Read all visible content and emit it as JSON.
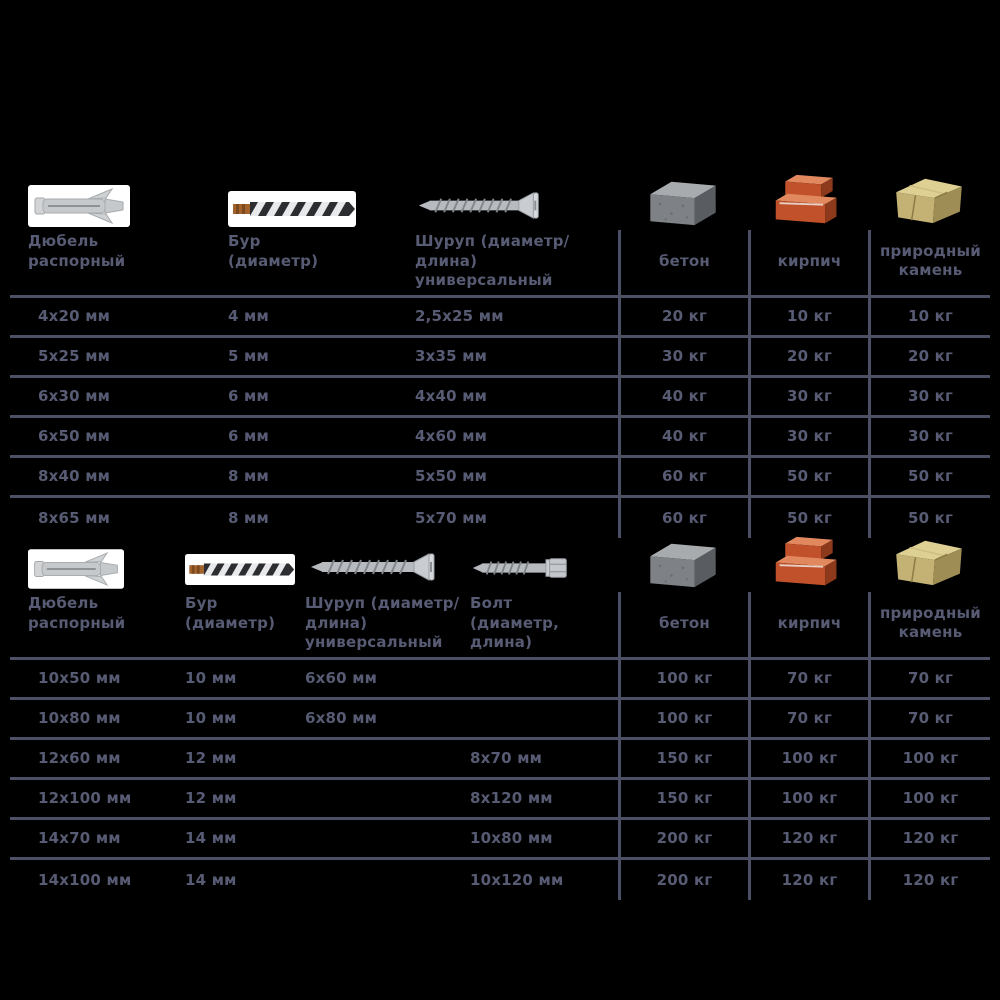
{
  "colors": {
    "background": "#000000",
    "text": "#575b73",
    "line": "#4c5066",
    "image_panel": "#ffffff",
    "brick": "#c0512b",
    "concrete": "#7e8286",
    "stone": "#c3b273"
  },
  "chart_data": [
    {
      "type": "table",
      "columns": [
        "Дюбель\nраспорный",
        "Бур\n(диаметр)",
        "Шуруп (диаметр/длина)\nуниверсальный",
        "бетон",
        "кирпич",
        "природный камень"
      ],
      "column_icons": [
        "dowel",
        "drill-bit",
        "universal-screw",
        "concrete-block",
        "brick",
        "natural-stone"
      ],
      "load_columns_start": 3,
      "rows": [
        [
          "4х20 мм",
          "4 мм",
          "2,5х25 мм",
          "20 кг",
          "10 кг",
          "10 кг"
        ],
        [
          "5х25 мм",
          "5 мм",
          "3х35 мм",
          "30 кг",
          "20 кг",
          "20 кг"
        ],
        [
          "6х30 мм",
          "6 мм",
          "4х40 мм",
          "40 кг",
          "30 кг",
          "30 кг"
        ],
        [
          "6х50 мм",
          "6 мм",
          "4х60 мм",
          "40 кг",
          "30 кг",
          "30 кг"
        ],
        [
          "8х40 мм",
          "8 мм",
          "5х50 мм",
          "60 кг",
          "50 кг",
          "50 кг"
        ],
        [
          "8х65 мм",
          "8 мм",
          "5х70 мм",
          "60 кг",
          "50 кг",
          "50 кг"
        ]
      ]
    },
    {
      "type": "table",
      "columns": [
        "Дюбель\nраспорный",
        "Бур\n(диаметр)",
        "Шуруп (диаметр/длина)\nуниверсальный",
        "Болт\n(диаметр, длина)",
        "бетон",
        "кирпич",
        "природный камень"
      ],
      "column_icons": [
        "dowel",
        "drill-bit",
        "universal-screw",
        "lag-bolt",
        "concrete-block",
        "brick",
        "natural-stone"
      ],
      "load_columns_start": 4,
      "rows": [
        [
          "10х50 мм",
          "10 мм",
          "6х60 мм",
          "",
          "100 кг",
          "70 кг",
          "70 кг"
        ],
        [
          "10х80 мм",
          "10 мм",
          "6х80 мм",
          "",
          "100 кг",
          "70 кг",
          "70 кг"
        ],
        [
          "12х60 мм",
          "12 мм",
          "",
          "8х70 мм",
          "150 кг",
          "100 кг",
          "100 кг"
        ],
        [
          "12х100 мм",
          "12 мм",
          "",
          "8х120 мм",
          "150 кг",
          "100 кг",
          "100 кг"
        ],
        [
          "14х70 мм",
          "14 мм",
          "",
          "10х80 мм",
          "200 кг",
          "120 кг",
          "120 кг"
        ],
        [
          "14х100 мм",
          "14 мм",
          "",
          "10х120 мм",
          "200 кг",
          "120 кг",
          "120 кг"
        ]
      ]
    }
  ]
}
